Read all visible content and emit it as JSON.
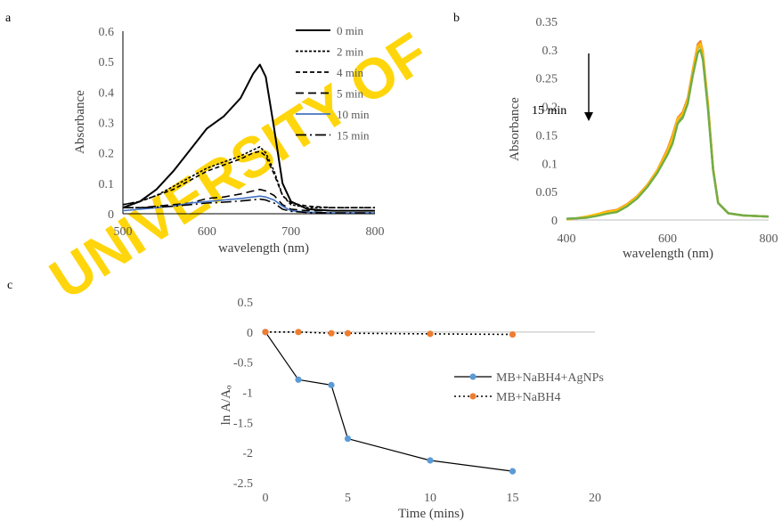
{
  "watermark": "UNIVERSITY OF",
  "chart_data": [
    {
      "panel": "a",
      "type": "line",
      "xlabel": "wavelength (nm)",
      "ylabel": "Absorbance",
      "xlim": [
        500,
        800
      ],
      "ylim": [
        0,
        0.6
      ],
      "xticks": [
        "500",
        "600",
        "700",
        "800"
      ],
      "yticks": [
        "0",
        "0.1",
        "0.2",
        "0.3",
        "0.4",
        "0.5",
        "0.6"
      ],
      "legend_position": "top-right",
      "series": [
        {
          "name": "0 min",
          "color": "#000000",
          "dash": "solid",
          "x": [
            500,
            520,
            540,
            560,
            580,
            600,
            620,
            640,
            655,
            663,
            670,
            680,
            690,
            700,
            720,
            750,
            800
          ],
          "values": [
            0.02,
            0.04,
            0.08,
            0.14,
            0.21,
            0.28,
            0.32,
            0.38,
            0.46,
            0.49,
            0.45,
            0.28,
            0.1,
            0.04,
            0.015,
            0.01,
            0.01
          ]
        },
        {
          "name": "2 min",
          "color": "#000000",
          "dash": "fine",
          "x": [
            500,
            520,
            540,
            560,
            580,
            600,
            620,
            640,
            655,
            663,
            670,
            680,
            690,
            700,
            720,
            750,
            800
          ],
          "values": [
            0.03,
            0.04,
            0.06,
            0.09,
            0.12,
            0.15,
            0.17,
            0.19,
            0.21,
            0.22,
            0.2,
            0.14,
            0.06,
            0.03,
            0.02,
            0.02,
            0.02
          ]
        },
        {
          "name": "4 min",
          "color": "#000000",
          "dash": "short",
          "x": [
            500,
            520,
            540,
            560,
            580,
            600,
            620,
            640,
            655,
            663,
            670,
            680,
            690,
            700,
            720,
            750,
            800
          ],
          "values": [
            0.03,
            0.04,
            0.06,
            0.08,
            0.11,
            0.14,
            0.16,
            0.18,
            0.2,
            0.205,
            0.19,
            0.13,
            0.06,
            0.035,
            0.025,
            0.02,
            0.02
          ]
        },
        {
          "name": "5 min",
          "color": "#000000",
          "dash": "long",
          "x": [
            500,
            520,
            540,
            560,
            580,
            600,
            620,
            640,
            655,
            663,
            670,
            680,
            690,
            700,
            720,
            750,
            800
          ],
          "values": [
            0.02,
            0.02,
            0.025,
            0.03,
            0.035,
            0.05,
            0.055,
            0.065,
            0.075,
            0.08,
            0.075,
            0.06,
            0.03,
            0.015,
            0.01,
            0.01,
            0.01
          ]
        },
        {
          "name": "10 min",
          "color": "#4472c4",
          "dash": "solid",
          "x": [
            500,
            520,
            540,
            560,
            580,
            600,
            620,
            640,
            655,
            663,
            670,
            680,
            690,
            700,
            720,
            750,
            800
          ],
          "values": [
            0.01,
            0.015,
            0.02,
            0.025,
            0.035,
            0.04,
            0.045,
            0.05,
            0.055,
            0.058,
            0.055,
            0.045,
            0.025,
            0.01,
            0.005,
            0.003,
            0.003
          ]
        },
        {
          "name": "15 min",
          "color": "#000000",
          "dash": "dashdot",
          "x": [
            500,
            520,
            540,
            560,
            580,
            600,
            620,
            640,
            655,
            663,
            670,
            680,
            690,
            700,
            720,
            750,
            800
          ],
          "values": [
            0.02,
            0.02,
            0.022,
            0.025,
            0.03,
            0.035,
            0.038,
            0.042,
            0.046,
            0.048,
            0.045,
            0.035,
            0.015,
            0.008,
            0.004,
            0.003,
            0.003
          ]
        }
      ]
    },
    {
      "panel": "b",
      "type": "line",
      "xlabel": "wavelength (nm)",
      "ylabel": "Absorbance",
      "xlim": [
        400,
        800
      ],
      "ylim": [
        0,
        0.35
      ],
      "xticks": [
        "400",
        "600",
        "800"
      ],
      "yticks": [
        "0",
        "0.05",
        "0.1",
        "0.15",
        "0.2",
        "0.25",
        "0.3",
        "0.35"
      ],
      "annotation": "15 min",
      "series": [
        {
          "color": "#4472c4",
          "x": [
            400,
            420,
            440,
            460,
            480,
            500,
            520,
            540,
            560,
            580,
            600,
            610,
            620,
            630,
            640,
            650,
            660,
            665,
            670,
            680,
            690,
            700,
            720,
            750,
            800
          ],
          "values": [
            0.002,
            0.003,
            0.005,
            0.008,
            0.012,
            0.015,
            0.025,
            0.04,
            0.06,
            0.085,
            0.12,
            0.14,
            0.175,
            0.185,
            0.21,
            0.26,
            0.305,
            0.31,
            0.29,
            0.2,
            0.09,
            0.03,
            0.012,
            0.008,
            0.006
          ]
        },
        {
          "color": "#ed7d31",
          "x": [
            400,
            420,
            440,
            460,
            480,
            500,
            520,
            540,
            560,
            580,
            600,
            610,
            620,
            630,
            640,
            650,
            660,
            665,
            670,
            680,
            690,
            700,
            720,
            750,
            800
          ],
          "values": [
            0.001,
            0.003,
            0.006,
            0.01,
            0.015,
            0.018,
            0.028,
            0.042,
            0.062,
            0.088,
            0.125,
            0.15,
            0.18,
            0.19,
            0.215,
            0.265,
            0.31,
            0.315,
            0.295,
            0.205,
            0.092,
            0.03,
            0.012,
            0.008,
            0.006
          ]
        },
        {
          "color": "#a5a5a5",
          "x": [
            400,
            420,
            440,
            460,
            480,
            500,
            520,
            540,
            560,
            580,
            600,
            610,
            620,
            630,
            640,
            650,
            660,
            665,
            670,
            680,
            690,
            700,
            720,
            750,
            800
          ],
          "values": [
            0.002,
            0.003,
            0.005,
            0.009,
            0.013,
            0.016,
            0.026,
            0.04,
            0.06,
            0.086,
            0.12,
            0.143,
            0.176,
            0.186,
            0.21,
            0.258,
            0.302,
            0.307,
            0.288,
            0.2,
            0.09,
            0.03,
            0.012,
            0.008,
            0.006
          ]
        },
        {
          "color": "#ffc000",
          "x": [
            400,
            420,
            440,
            460,
            480,
            500,
            520,
            540,
            560,
            580,
            600,
            610,
            620,
            630,
            640,
            650,
            660,
            665,
            670,
            680,
            690,
            700,
            720,
            750,
            800
          ],
          "values": [
            0.001,
            0.003,
            0.006,
            0.01,
            0.014,
            0.017,
            0.027,
            0.041,
            0.061,
            0.087,
            0.122,
            0.146,
            0.178,
            0.187,
            0.212,
            0.262,
            0.306,
            0.311,
            0.291,
            0.202,
            0.091,
            0.03,
            0.012,
            0.008,
            0.006
          ]
        },
        {
          "color": "#70ad47",
          "x": [
            400,
            420,
            440,
            460,
            480,
            500,
            520,
            540,
            560,
            580,
            600,
            610,
            620,
            630,
            640,
            650,
            660,
            665,
            670,
            680,
            690,
            700,
            720,
            750,
            800
          ],
          "values": [
            0.002,
            0.003,
            0.004,
            0.007,
            0.011,
            0.014,
            0.024,
            0.038,
            0.058,
            0.083,
            0.115,
            0.135,
            0.17,
            0.18,
            0.205,
            0.255,
            0.295,
            0.3,
            0.282,
            0.195,
            0.088,
            0.03,
            0.012,
            0.008,
            0.006
          ]
        }
      ]
    },
    {
      "panel": "c",
      "type": "line",
      "xlabel": "Time (mins)",
      "ylabel": "ln A/Aₒ",
      "xlim": [
        0,
        20
      ],
      "ylim": [
        -2.5,
        0.5
      ],
      "xticks": [
        "0",
        "5",
        "10",
        "15",
        "20"
      ],
      "yticks": [
        "0.5",
        "0",
        "-0.5",
        "-1",
        "-1.5",
        "-2",
        "-2.5"
      ],
      "legend_position": "right",
      "series": [
        {
          "name": "MB+NaBH4+AgNPs",
          "color": "#5b9bd5",
          "line_color": "#000000",
          "dash": "solid",
          "x": [
            0,
            2,
            4,
            5,
            10,
            15
          ],
          "values": [
            0,
            -0.79,
            -0.88,
            -1.77,
            -2.13,
            -2.31
          ]
        },
        {
          "name": "MB+NaBH4",
          "color": "#ed7d31",
          "line_color": "#000000",
          "dash": "dotted",
          "x": [
            0,
            2,
            4,
            5,
            10,
            15
          ],
          "values": [
            0,
            0,
            -0.02,
            -0.02,
            -0.03,
            -0.04
          ]
        }
      ]
    }
  ]
}
